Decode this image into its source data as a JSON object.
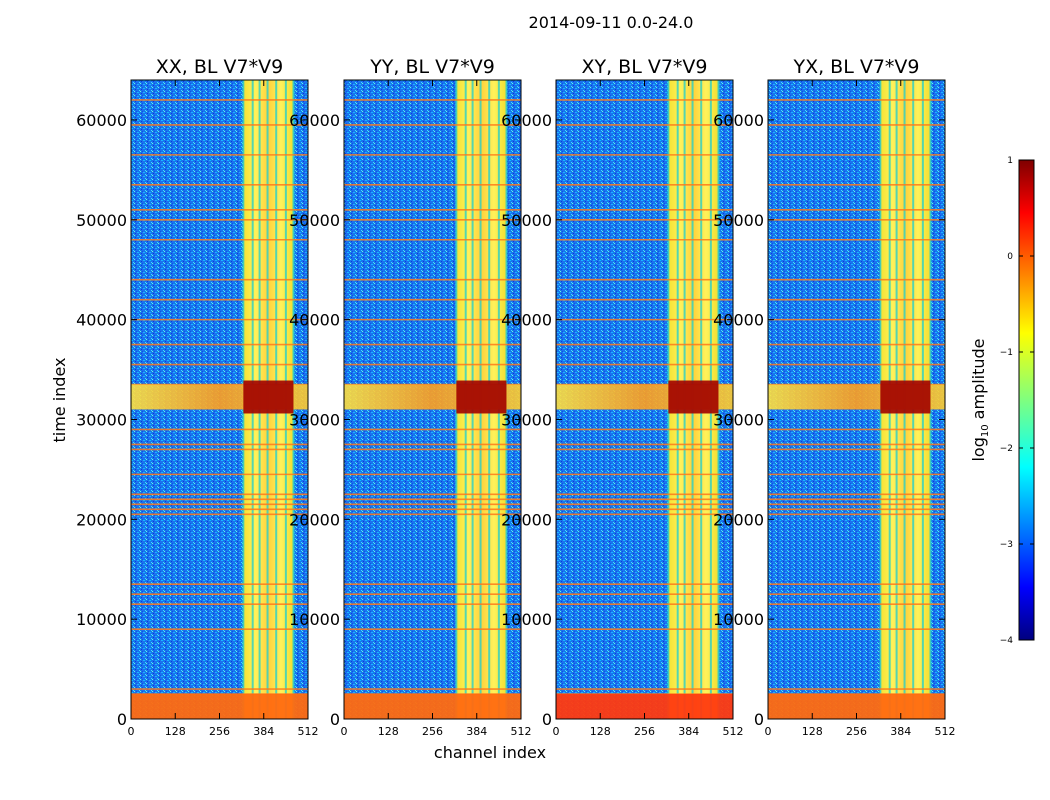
{
  "chart_data": {
    "type": "heatmap",
    "suptitle": "2014-09-11 0.0-24.0",
    "xlabel": "channel index",
    "ylabel": "time index",
    "xlim": [
      0,
      512
    ],
    "ylim": [
      0,
      64000
    ],
    "xticks": [
      0,
      128,
      256,
      384,
      512
    ],
    "yticks": [
      0,
      10000,
      20000,
      30000,
      40000,
      50000,
      60000
    ],
    "panels": [
      {
        "title": "XX, BL V7*V9"
      },
      {
        "title": "YY, BL V7*V9"
      },
      {
        "title": "XY, BL V7*V9"
      },
      {
        "title": "YX, BL V7*V9"
      }
    ],
    "rfi_band": {
      "channel_start": 325,
      "channel_end": 470,
      "sub_columns": [
        325,
        352,
        372,
        395,
        420,
        448,
        470
      ]
    },
    "bright_time_band": [
      31000,
      33500
    ],
    "low_time_band": [
      0,
      2500
    ],
    "flag_rows": [
      2500,
      3000,
      9000,
      11500,
      12500,
      13500,
      20500,
      21000,
      21500,
      22000,
      22500,
      24500,
      27000,
      27500,
      29000,
      33500,
      35500,
      37500,
      40000,
      42000,
      44000,
      48000,
      50000,
      51000,
      53500,
      56500,
      59500,
      62000
    ],
    "colorbar": {
      "label": "log10 amplitude",
      "label_main": "log",
      "label_sub": "10",
      "label_rest": " amplitude",
      "range": [
        -4,
        1
      ],
      "ticks": [
        "1",
        "0",
        "−1",
        "−2",
        "−3",
        "−4"
      ],
      "colormap": "jet"
    }
  }
}
